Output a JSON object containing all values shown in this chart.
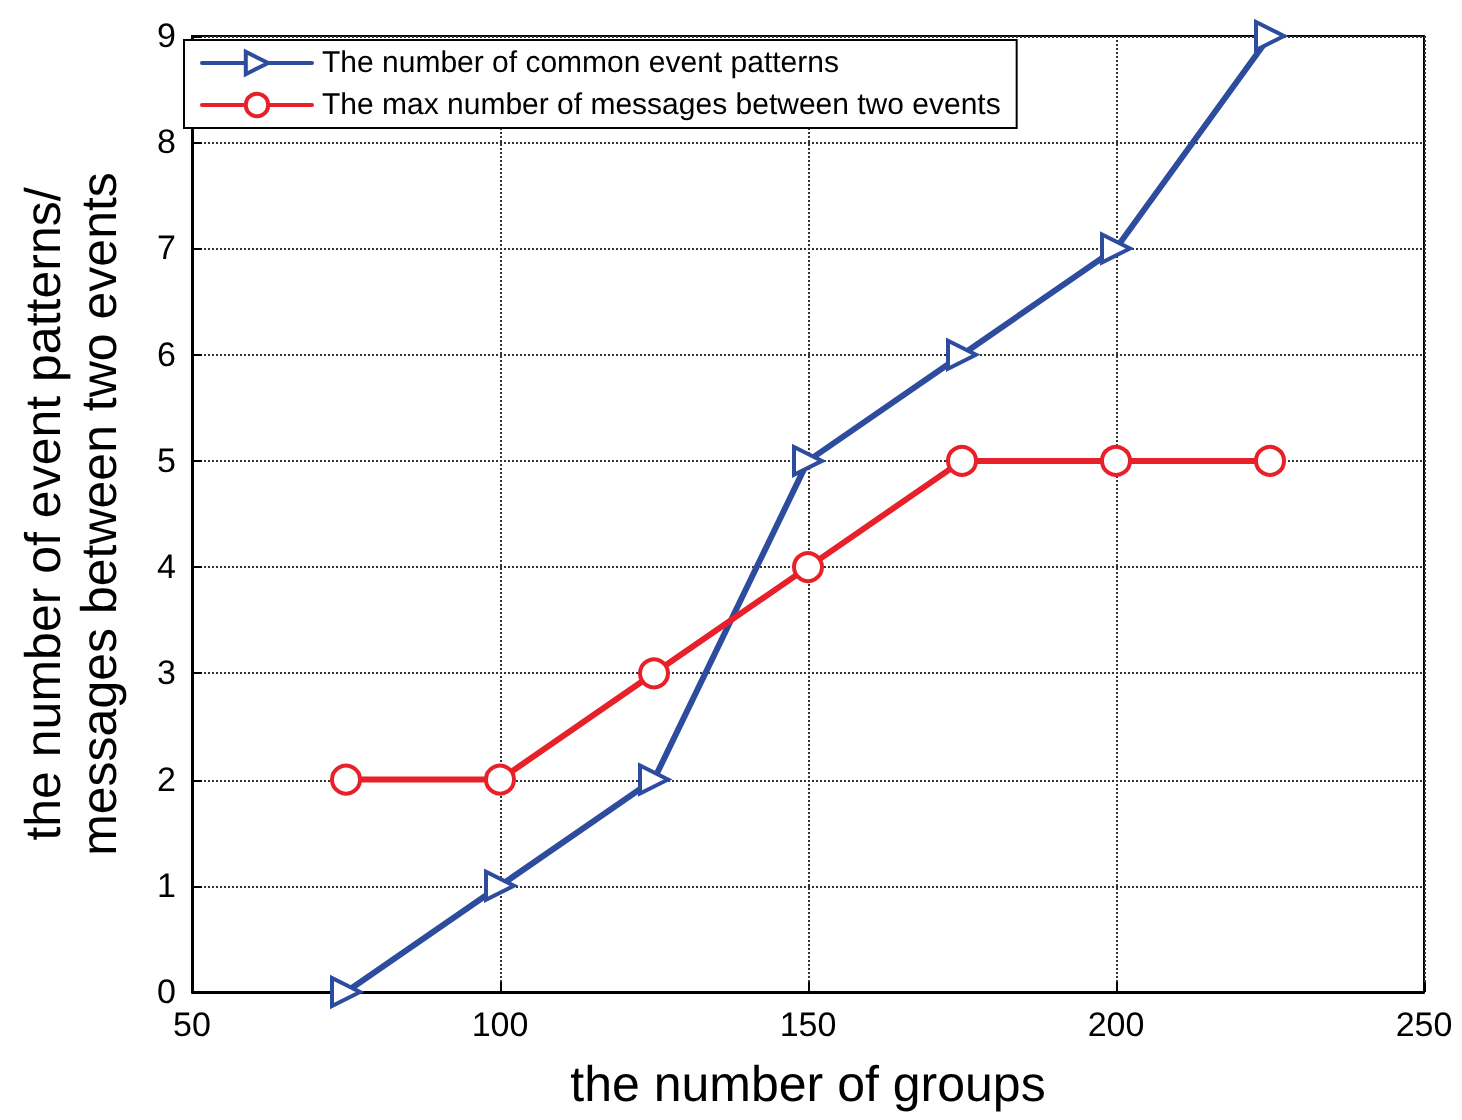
{
  "chart_data": {
    "type": "line",
    "xlabel": "the number of groups",
    "ylabel": "the number of event patterns/\nmessages between two events",
    "x": [
      75,
      100,
      125,
      150,
      175,
      200,
      225
    ],
    "series": [
      {
        "name": "The number of common event patterns",
        "color": "#2e4c9e",
        "marker": "triangle",
        "values": [
          0,
          1,
          2,
          5,
          6,
          7,
          9
        ]
      },
      {
        "name": "The max number of messages between two events",
        "color": "#e8202a",
        "marker": "circle",
        "values": [
          2,
          2,
          3,
          4,
          5,
          5,
          5
        ]
      }
    ],
    "xlim": [
      50,
      250
    ],
    "xticks": [
      50,
      100,
      150,
      200,
      250
    ],
    "ylim": [
      0,
      9
    ],
    "yticks": [
      0,
      1,
      2,
      3,
      4,
      5,
      6,
      7,
      8,
      9
    ],
    "grid": true,
    "legend": "top left",
    "line_style": "solid"
  }
}
